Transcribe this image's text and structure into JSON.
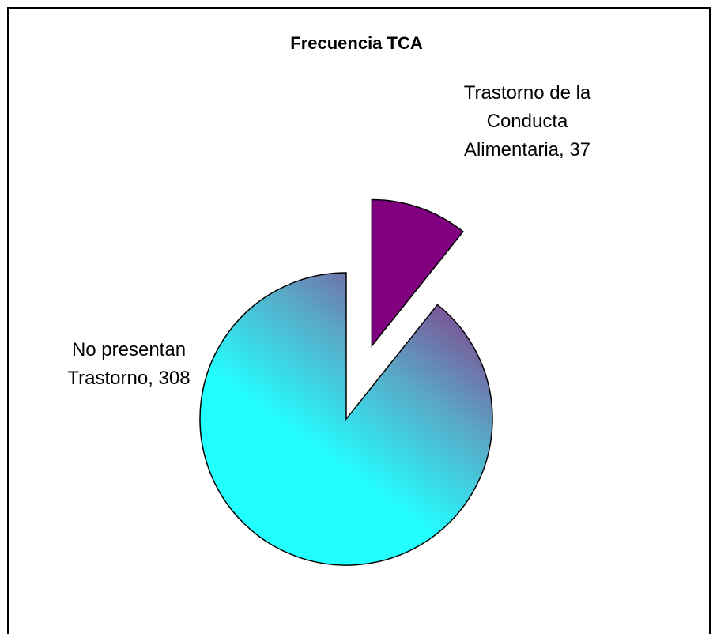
{
  "chart_data": {
    "type": "pie",
    "title": "Frecuencia TCA",
    "categories": [
      "Trastorno de la Conducta Alimentaria",
      "No presentan Trastorno"
    ],
    "values": [
      37,
      308
    ],
    "data_labels": [
      "Trastorno de la Conducta Alimentaria, 37",
      "No presentan Trastorno, 308"
    ],
    "colors": [
      "#800080",
      "#22ffff"
    ]
  }
}
